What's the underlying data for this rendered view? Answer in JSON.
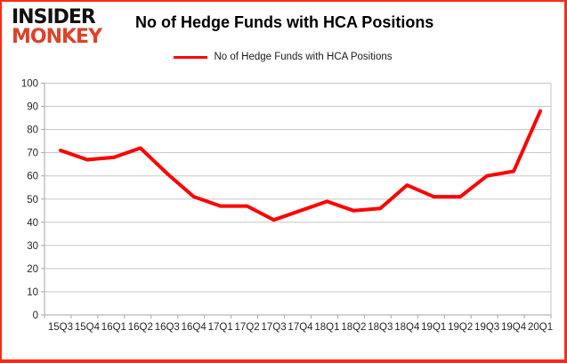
{
  "page": {
    "border_color": "#fb2c16",
    "background": "#ffffff"
  },
  "logo": {
    "line1": "INSIDER",
    "line2": "MONKEY",
    "line1_color": "#111111",
    "line2_color": "#dd4229"
  },
  "header": {
    "title": "No of Hedge Funds with HCA Positions"
  },
  "legend": {
    "label": "No of Hedge Funds with HCA Positions",
    "line_color": "#ff0000"
  },
  "chart_data": {
    "type": "line",
    "title": "No of Hedge Funds with HCA Positions",
    "categories": [
      "15Q3",
      "15Q4",
      "16Q1",
      "16Q2",
      "16Q3",
      "16Q4",
      "17Q1",
      "17Q2",
      "17Q3",
      "17Q4",
      "18Q1",
      "18Q2",
      "18Q3",
      "18Q4",
      "19Q1",
      "19Q2",
      "19Q3",
      "19Q4",
      "20Q1"
    ],
    "series": [
      {
        "name": "No of Hedge Funds with HCA Positions",
        "color": "#ff0000",
        "values": [
          71,
          67,
          68,
          72,
          61,
          51,
          47,
          47,
          41,
          45,
          49,
          45,
          46,
          56,
          51,
          51,
          60,
          62,
          88
        ]
      }
    ],
    "xlabel": "",
    "ylabel": "",
    "ylim": [
      0,
      100
    ],
    "ytick_step": 10,
    "grid": "horizontal",
    "gridline_color": "#c6c6c6",
    "axis_color": "#a6a6a6",
    "tick_label_color": "#262626",
    "legend_position": "top-center"
  }
}
